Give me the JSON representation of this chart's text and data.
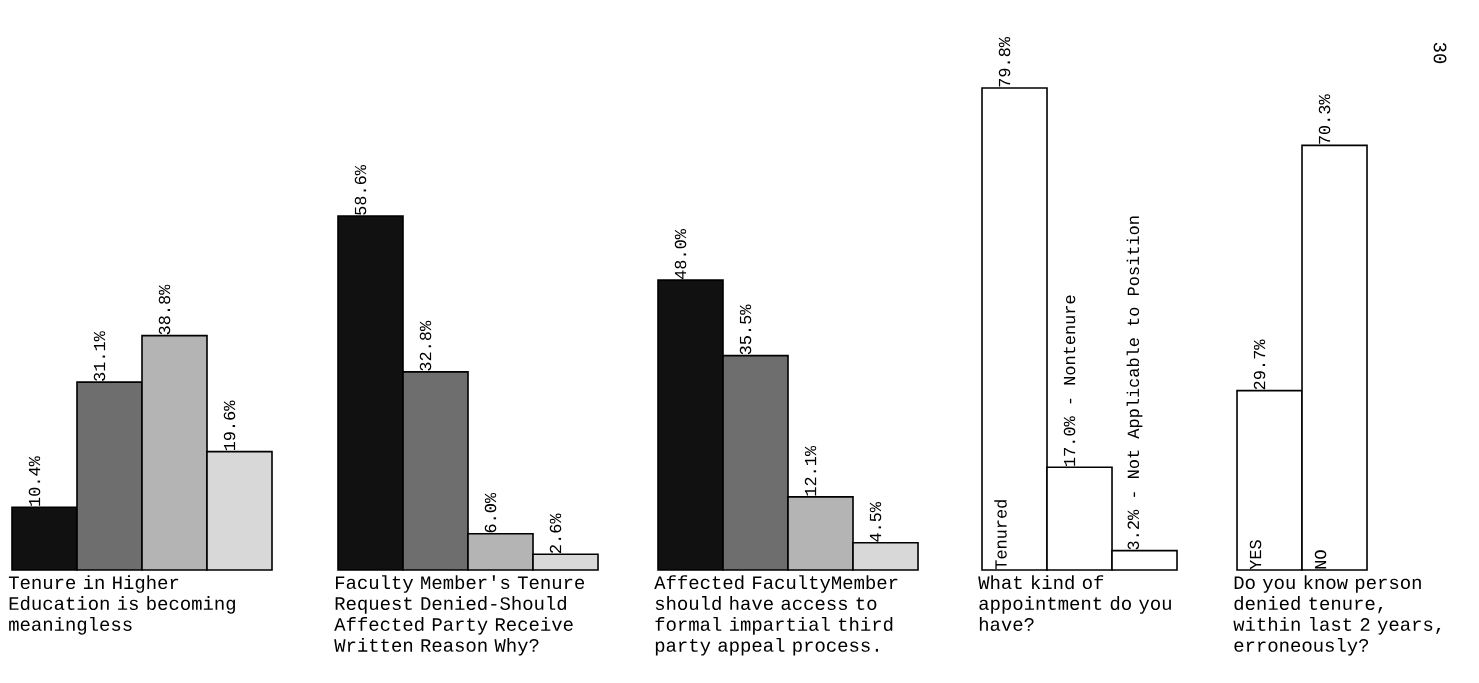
{
  "chart_data": [
    {
      "type": "bar",
      "categories": [
        null,
        null,
        null,
        null
      ],
      "values": [
        10.4,
        31.1,
        38.8,
        19.6
      ],
      "colors": [
        "#111111",
        "#6e6e6e",
        "#b4b4b4",
        "#d8d8d8"
      ],
      "value_labels": [
        "10.4%",
        "31.1%",
        "38.8%",
        "19.6%"
      ],
      "xlabel": "Tenure in Higher Education is becoming meaningless"
    },
    {
      "type": "bar",
      "categories": [
        null,
        null,
        null,
        null
      ],
      "values": [
        58.6,
        32.8,
        6.0,
        2.6
      ],
      "colors": [
        "#111111",
        "#6e6e6e",
        "#b4b4b4",
        "#d8d8d8"
      ],
      "value_labels": [
        "58.6%",
        "32.8%",
        "6.0%",
        "2.6%"
      ],
      "xlabel": "Faculty Member's Tenure Request Denied-Should Affected Party Receive Written Reason Why?"
    },
    {
      "type": "bar",
      "categories": [
        null,
        null,
        null,
        null
      ],
      "values": [
        48.0,
        35.5,
        12.1,
        4.5
      ],
      "colors": [
        "#111111",
        "#6e6e6e",
        "#b4b4b4",
        "#d8d8d8"
      ],
      "value_labels": [
        "48.0%",
        "35.5%",
        "12.1%",
        "4.5%"
      ],
      "xlabel": "Affected FacultyMember should have access to formal impartial third party appeal process."
    },
    {
      "type": "bar",
      "categories": [
        "Tenured",
        null,
        null
      ],
      "values": [
        79.8,
        17.0,
        3.2
      ],
      "colors": [
        "#ffffff",
        "#ffffff",
        "#ffffff"
      ],
      "value_labels": [
        "79.8%",
        "17.0% - Nontenure",
        "3.2% - Not Applicable to Position"
      ],
      "xlabel": "What kind of appointment do you have?"
    },
    {
      "type": "bar",
      "categories": [
        "YES",
        "NO"
      ],
      "values": [
        29.7,
        70.3
      ],
      "colors": [
        "#ffffff",
        "#ffffff"
      ],
      "value_labels": [
        "29.7%",
        "70.3%"
      ],
      "xlabel": "Do you know person denied tenure, within last 2 years, erroneously?",
      "annotations": [
        "30"
      ]
    }
  ]
}
